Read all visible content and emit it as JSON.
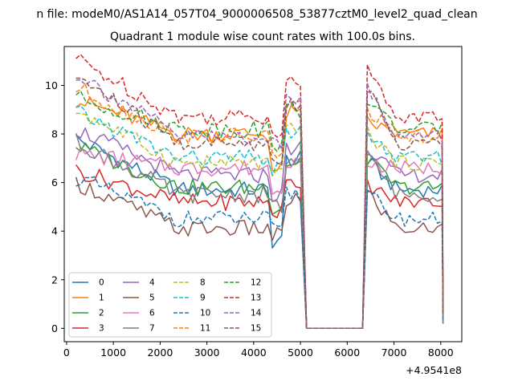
{
  "figure": {
    "suptitle": "n file: modeM0/AS1A14_057T04_9000006508_53877cztM0_level2_quad_clean",
    "title": "Quadrant 1 module wise count rates with 100.0s bins.",
    "x_offset_label": "+4.9541e8"
  },
  "chart_data": {
    "type": "line",
    "title": "Quadrant 1 module wise count rates with 100.0s bins.",
    "xlabel": "",
    "ylabel": "",
    "x_offset": "+4.9541e8",
    "xlim": [
      -50,
      8450
    ],
    "ylim": [
      -0.55,
      11.6
    ],
    "xticks": [
      0,
      1000,
      2000,
      3000,
      4000,
      5000,
      6000,
      7000,
      8000
    ],
    "yticks": [
      0,
      2,
      4,
      6,
      8,
      10
    ],
    "grid": false,
    "legend": {
      "placement": "lower-left",
      "columns": 4
    },
    "series": [
      {
        "name": "0",
        "color": "#1f77b4",
        "dash": "solid",
        "start": 7.8,
        "end": 6.9,
        "level": 5.7,
        "low": 3.6
      },
      {
        "name": "1",
        "color": "#ff7f0e",
        "dash": "solid",
        "start": 9.4,
        "end": 8.5,
        "level": 8.0,
        "low": 6.5
      },
      {
        "name": "2",
        "color": "#2ca02c",
        "dash": "solid",
        "start": 7.5,
        "end": 7.0,
        "level": 5.8,
        "low": 5.0
      },
      {
        "name": "3",
        "color": "#d62728",
        "dash": "solid",
        "start": 6.5,
        "end": 5.9,
        "level": 5.2,
        "low": 4.8
      },
      {
        "name": "4",
        "color": "#9467bd",
        "dash": "solid",
        "start": 8.2,
        "end": 7.5,
        "level": 6.3,
        "low": 5.5
      },
      {
        "name": "5",
        "color": "#8c564b",
        "dash": "solid",
        "start": 6.0,
        "end": 5.6,
        "level": 4.1,
        "low": 3.8
      },
      {
        "name": "6",
        "color": "#e377c2",
        "dash": "solid",
        "start": 7.2,
        "end": 6.8,
        "level": 6.6,
        "low": 5.8
      },
      {
        "name": "7",
        "color": "#7f7f7f",
        "dash": "solid",
        "start": 7.7,
        "end": 7.1,
        "level": 5.5,
        "low": 5.0
      },
      {
        "name": "8",
        "color": "#bcbd22",
        "dash": "dashed",
        "start": 9.0,
        "end": 8.1,
        "level": 6.8,
        "low": 6.3
      },
      {
        "name": "9",
        "color": "#17becf",
        "dash": "dashed",
        "start": 8.9,
        "end": 7.9,
        "level": 7.0,
        "low": 6.5
      },
      {
        "name": "10",
        "color": "#1f77b4",
        "dash": "dashed",
        "start": 6.2,
        "end": 5.6,
        "level": 4.5,
        "low": 4.0
      },
      {
        "name": "11",
        "color": "#ff7f0e",
        "dash": "dashed",
        "start": 9.9,
        "end": 9.0,
        "level": 7.9,
        "low": 7.2
      },
      {
        "name": "12",
        "color": "#2ca02c",
        "dash": "dashed",
        "start": 9.5,
        "end": 9.4,
        "level": 8.2,
        "low": 7.6
      },
      {
        "name": "13",
        "color": "#d62728",
        "dash": "dashed",
        "start": 11.1,
        "end": 10.6,
        "level": 8.7,
        "low": 8.2
      },
      {
        "name": "14",
        "color": "#9467bd",
        "dash": "dashed",
        "start": 10.5,
        "end": 9.9,
        "level": 7.9,
        "low": 7.5
      },
      {
        "name": "15",
        "color": "#8c564b",
        "dash": "dashed",
        "start": 10.4,
        "end": 9.8,
        "level": 7.6,
        "low": 7.0
      }
    ],
    "gap": {
      "x_start": 5130,
      "x_end": 6330,
      "value": 0.0
    },
    "segments": [
      {
        "x_start": 200,
        "x_end": 5050
      },
      {
        "x_start": 6430,
        "x_end": 8000
      }
    ],
    "end_values": [
      0.2,
      0.6
    ]
  }
}
